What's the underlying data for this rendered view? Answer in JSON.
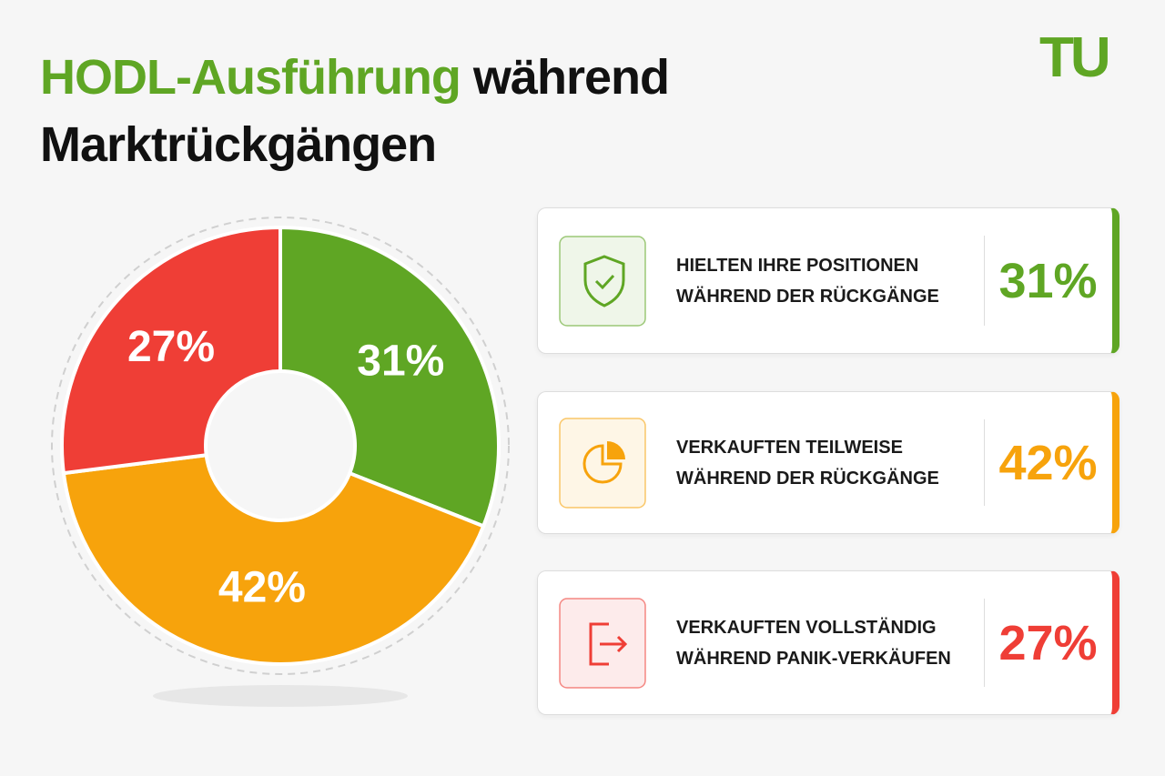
{
  "logo": "TU",
  "chart_data": {
    "type": "pie",
    "title_highlight": "HODL-Ausführung",
    "title": "während Marktrückgängen",
    "categories": [
      "HIELTEN IHRE POSITIONEN WÄHREND DER RÜCKGÄNGE",
      "VERKAUFTEN TEILWEISE WÄHREND DER RÜCKGÄNGE",
      "VERKAUFTEN VOLLSTÄNDIG WÄHREND PANIK-VERKÄUFEN"
    ],
    "values": [
      31,
      42,
      27
    ],
    "value_labels": [
      "31%",
      "42%",
      "27%"
    ],
    "colors": [
      "#5fa624",
      "#f7a30c",
      "#ef3e36"
    ],
    "title_color": "#5fa624"
  }
}
